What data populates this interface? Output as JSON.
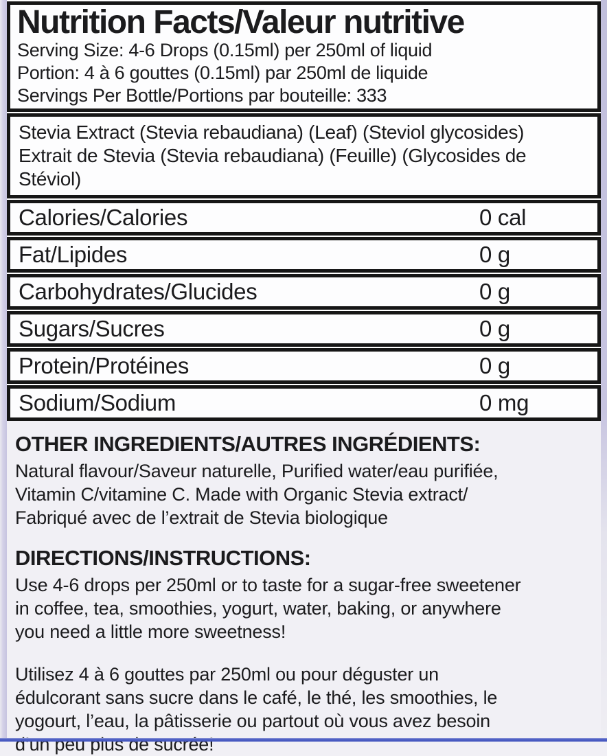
{
  "panel": {
    "title": "Nutrition Facts/Valeur nutritive",
    "serving_info": "Serving Size: 4-6 Drops (0.15ml) per 250ml of liquid\nPortion: 4 à 6 gouttes (0.15ml) par 250ml de liquide\nServings Per Bottle/Portions par bouteille: 333",
    "ingredient_source": "Stevia Extract (Stevia rebaudiana) (Leaf) (Steviol glycosides)\nExtrait de Stevia (Stevia rebaudiana) (Feuille) (Glycosides de Stéviol)",
    "nutrients": [
      {
        "label": "Calories/Calories",
        "value": "0 cal"
      },
      {
        "label": "Fat/Lipides",
        "value": "0 g"
      },
      {
        "label": "Carbohydrates/Glucides",
        "value": "0 g"
      },
      {
        "label": "Sugars/Sucres",
        "value": "0 g"
      },
      {
        "label": "Protein/Protéines",
        "value": "0 g"
      },
      {
        "label": "Sodium/Sodium",
        "value": "0 mg"
      }
    ]
  },
  "other_ingredients": {
    "heading": "OTHER INGREDIENTS/AUTRES INGRÉDIENTS:",
    "body": "Natural flavour/Saveur naturelle, Purified water/eau purifiée,\nVitamin C/vitamine C. Made with Organic Stevia extract/\nFabriqué avec de l’extrait de Stevia biologique"
  },
  "directions": {
    "heading": "DIRECTIONS/INSTRUCTIONS:",
    "body_en": "Use 4-6 drops per 250ml or to taste for a sugar-free sweetener\nin coffee, tea, smoothies, yogurt, water, baking, or anywhere\nyou need a little more sweetness!",
    "body_fr": "Utilisez 4 à 6 gouttes par 250ml ou pour déguster un\nédulcorant sans sucre dans le café, le thé, les smoothies, le\nyogourt, l’eau, la pâtisserie ou partout où vous avez besoin\nd’un peu plus de sucrée!"
  },
  "colors": {
    "background": "#f1f0f5",
    "box_background": "#fdfdfe",
    "border_black": "#161616",
    "edge_strip_lavender": "#c7c4e0",
    "bottom_accent_blue": "#4c5ec4",
    "text": "#1b1b1d"
  }
}
